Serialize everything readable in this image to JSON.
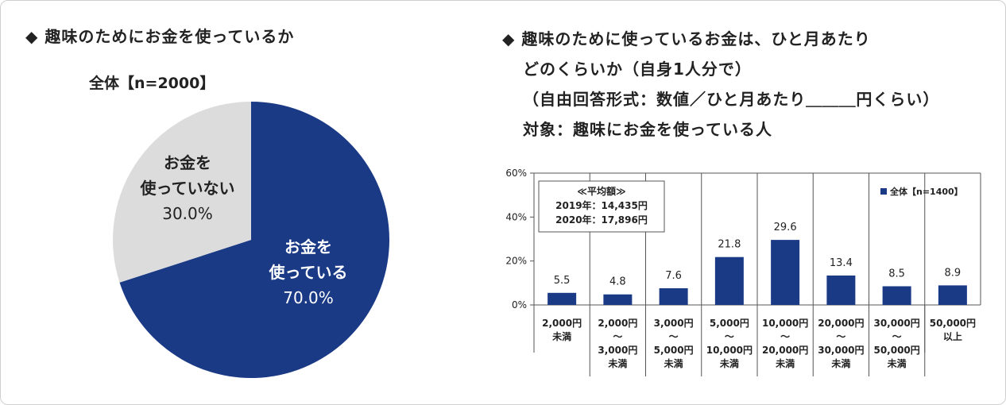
{
  "left": {
    "title": "◆ 趣味のためにお金を使っているか",
    "pie_label": "全体【n=2000】"
  },
  "right": {
    "title_lines": [
      "◆ 趣味のために使っているお金は、ひと月あたり",
      "どのくらいか（自身1人分で）",
      "（自由回答形式：数値／ひと月あたり＿＿＿円くらい）",
      "対象：趣味にお金を使っている人"
    ],
    "avg_box": [
      "≪平均額≫",
      "2019年：14,435円",
      "2020年：17,896円"
    ],
    "legend": "全体【n=1400】"
  },
  "chart_data": [
    {
      "type": "pie",
      "title": "全体【n=2000】",
      "slices": [
        {
          "label_lines": [
            "お金を",
            "使っている"
          ],
          "value": 70.0,
          "value_label": "70.0%",
          "color": "#1a3a86",
          "text_color": "#ffffff"
        },
        {
          "label_lines": [
            "お金を",
            "使っていない"
          ],
          "value": 30.0,
          "value_label": "30.0%",
          "color": "#dcdcdc",
          "text_color": "#222222"
        }
      ]
    },
    {
      "type": "bar",
      "categories": [
        [
          "2,000円",
          "未満"
        ],
        [
          "2,000円",
          "～",
          "3,000円",
          "未満"
        ],
        [
          "3,000円",
          "～",
          "5,000円",
          "未満"
        ],
        [
          "5,000円",
          "～",
          "10,000円",
          "未満"
        ],
        [
          "10,000円",
          "～",
          "20,000円",
          "未満"
        ],
        [
          "20,000円",
          "～",
          "30,000円",
          "未満"
        ],
        [
          "30,000円",
          "～",
          "50,000円",
          "未満"
        ],
        [
          "50,000円",
          "以上"
        ]
      ],
      "series": [
        {
          "name": "全体【n=1400】",
          "values": [
            5.5,
            4.8,
            7.6,
            21.8,
            29.6,
            13.4,
            8.5,
            8.9
          ],
          "color": "#1a3a86"
        }
      ],
      "value_labels": [
        "5.5",
        "4.8",
        "7.6",
        "21.8",
        "29.6",
        "13.4",
        "8.5",
        "8.9"
      ],
      "ylim": [
        0,
        60
      ],
      "yticks": [
        0,
        20,
        40,
        60
      ],
      "ytick_labels": [
        "0%",
        "20%",
        "40%",
        "60%"
      ],
      "grid": false,
      "legend_position": "top-right"
    }
  ]
}
